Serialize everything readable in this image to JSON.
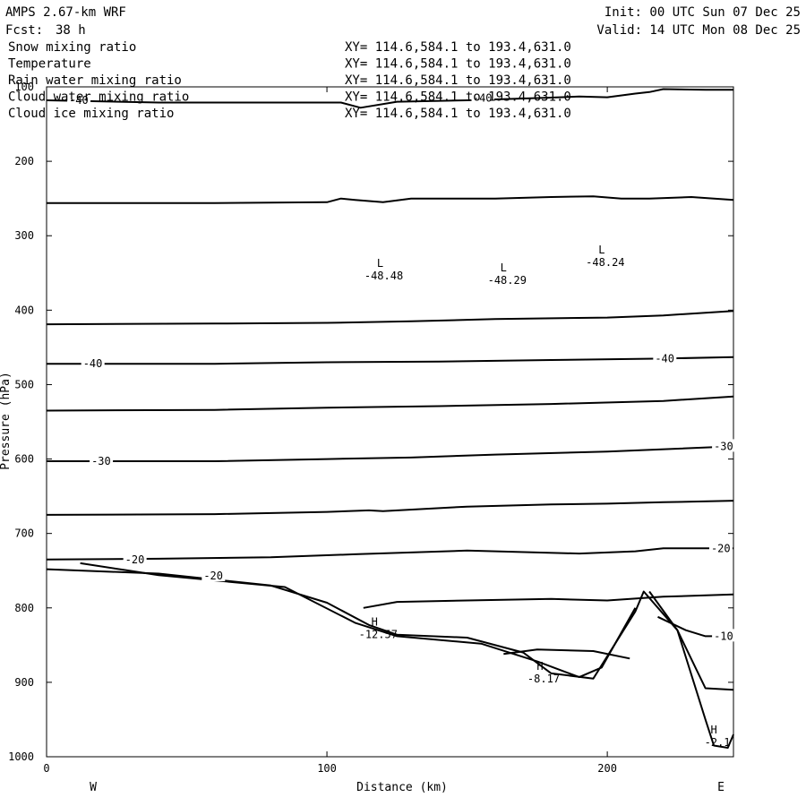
{
  "header": {
    "model": "AMPS 2.67-km WRF",
    "fcst_label": "Fcst:",
    "fcst_value": "38 h",
    "init": "Init: 00 UTC Sun 07 Dec 25",
    "valid": "Valid: 14 UTC Mon 08 Dec 25"
  },
  "fields": [
    {
      "name": "Snow mixing ratio",
      "xy": "XY= 114.6,584.1 to 193.4,631.0",
      "color": "#000000"
    },
    {
      "name": "Temperature",
      "xy": "XY= 114.6,584.1 to 193.4,631.0",
      "color": "#000000"
    },
    {
      "name": "Rain water mixing ratio",
      "xy": "XY= 114.6,584.1 to 193.4,631.0",
      "color": "#e00000"
    },
    {
      "name": "Cloud water mixing ratio",
      "xy": "XY= 114.6,584.1 to 193.4,631.0",
      "color": "#0000e0"
    },
    {
      "name": "Cloud ice mixing ratio",
      "xy": "XY= 114.6,584.1 to 193.4,631.0",
      "color": "#000000"
    }
  ],
  "chart_data": {
    "type": "line",
    "title": "",
    "xlabel": "Distance (km)",
    "ylabel": "Pressure (hPa)",
    "xlim": [
      0,
      245
    ],
    "ylim": [
      1000,
      100
    ],
    "x_ticks": [
      "0",
      "100",
      "200"
    ],
    "y_ticks": [
      "100",
      "200",
      "300",
      "400",
      "500",
      "600",
      "700",
      "800",
      "900",
      "1000"
    ],
    "x_tick_values": [
      0,
      100,
      200
    ],
    "y_tick_values": [
      100,
      200,
      300,
      400,
      500,
      600,
      700,
      800,
      900,
      1000
    ],
    "x_end_labels": {
      "left": "W",
      "right": "E"
    },
    "series": [
      {
        "level": -40,
        "points": [
          [
            0,
            118
          ],
          [
            40,
            121
          ],
          [
            80,
            121
          ],
          [
            105,
            121
          ],
          [
            112,
            128
          ],
          [
            125,
            120
          ],
          [
            150,
            118
          ],
          [
            175,
            115
          ],
          [
            190,
            113
          ],
          [
            200,
            114
          ],
          [
            210,
            109
          ],
          [
            215,
            107
          ],
          [
            220,
            103
          ],
          [
            235,
            104
          ],
          [
            245,
            104
          ]
        ]
      },
      {
        "points": [
          [
            0,
            256
          ],
          [
            60,
            256
          ],
          [
            100,
            255
          ],
          [
            105,
            250
          ],
          [
            110,
            252
          ],
          [
            120,
            255
          ],
          [
            130,
            250
          ],
          [
            160,
            250
          ],
          [
            180,
            248
          ],
          [
            195,
            247
          ],
          [
            205,
            250
          ],
          [
            215,
            250
          ],
          [
            230,
            248
          ],
          [
            245,
            252
          ]
        ]
      },
      {
        "points": [
          [
            0,
            419
          ],
          [
            60,
            418
          ],
          [
            100,
            417
          ],
          [
            130,
            415
          ],
          [
            160,
            412
          ],
          [
            200,
            410
          ],
          [
            220,
            407
          ],
          [
            245,
            401
          ]
        ]
      },
      {
        "level": -40,
        "points": [
          [
            0,
            472
          ],
          [
            60,
            472
          ],
          [
            100,
            470
          ],
          [
            140,
            469
          ],
          [
            180,
            467
          ],
          [
            220,
            465
          ],
          [
            245,
            463
          ]
        ]
      },
      {
        "points": [
          [
            0,
            535
          ],
          [
            60,
            534
          ],
          [
            100,
            531
          ],
          [
            140,
            529
          ],
          [
            180,
            526
          ],
          [
            220,
            522
          ],
          [
            245,
            516
          ]
        ]
      },
      {
        "level": -30,
        "points": [
          [
            0,
            603
          ],
          [
            60,
            603
          ],
          [
            100,
            600
          ],
          [
            130,
            598
          ],
          [
            160,
            594
          ],
          [
            200,
            590
          ],
          [
            245,
            583
          ]
        ]
      },
      {
        "points": [
          [
            0,
            675
          ],
          [
            60,
            674
          ],
          [
            100,
            671
          ],
          [
            115,
            669
          ],
          [
            120,
            670
          ],
          [
            150,
            664
          ],
          [
            180,
            661
          ],
          [
            200,
            660
          ],
          [
            220,
            658
          ],
          [
            245,
            656
          ]
        ]
      },
      {
        "level": -20,
        "points": [
          [
            0,
            735
          ],
          [
            40,
            734
          ],
          [
            80,
            732
          ],
          [
            110,
            728
          ],
          [
            150,
            723
          ],
          [
            190,
            727
          ],
          [
            210,
            724
          ],
          [
            220,
            720
          ],
          [
            245,
            720
          ]
        ]
      },
      {
        "level": -20,
        "points": [
          [
            0,
            748
          ],
          [
            40,
            754
          ],
          [
            80,
            770
          ],
          [
            100,
            793
          ],
          [
            115,
            823
          ],
          [
            125,
            836
          ],
          [
            150,
            840
          ],
          [
            170,
            860
          ],
          [
            180,
            888
          ],
          [
            195,
            895
          ],
          [
            210,
            805
          ],
          [
            213,
            778
          ],
          [
            225,
            830
          ],
          [
            235,
            908
          ],
          [
            245,
            910
          ]
        ]
      },
      {
        "points": [
          [
            12,
            740
          ],
          [
            40,
            756
          ],
          [
            85,
            772
          ],
          [
            110,
            820
          ],
          [
            125,
            838
          ],
          [
            155,
            848
          ],
          [
            175,
            872
          ],
          [
            190,
            893
          ],
          [
            198,
            880
          ],
          [
            210,
            800
          ]
        ]
      },
      {
        "points": [
          [
            113,
            800
          ],
          [
            125,
            792
          ],
          [
            150,
            790
          ],
          [
            180,
            788
          ],
          [
            200,
            790
          ],
          [
            220,
            785
          ],
          [
            245,
            782
          ]
        ]
      },
      {
        "level": -10,
        "points": [
          [
            218,
            812
          ],
          [
            228,
            830
          ],
          [
            235,
            838
          ],
          [
            245,
            838
          ]
        ]
      },
      {
        "points": [
          [
            163,
            862
          ],
          [
            175,
            856
          ],
          [
            195,
            858
          ],
          [
            208,
            868
          ]
        ]
      },
      {
        "points": [
          [
            215,
            778
          ],
          [
            225,
            830
          ],
          [
            235,
            950
          ],
          [
            238,
            985
          ],
          [
            243,
            988
          ],
          [
            245,
            970
          ]
        ]
      }
    ],
    "annotations": [
      {
        "text": "L",
        "value": "-48.48",
        "x": 119,
        "y": 342
      },
      {
        "text": "L",
        "value": "-48.29",
        "x": 163,
        "y": 348
      },
      {
        "text": "L",
        "value": "-48.24",
        "x": 198,
        "y": 324
      },
      {
        "text": "H",
        "value": "-12.57",
        "x": 117,
        "y": 824
      },
      {
        "text": "H",
        "value": "-8.17",
        "x": 176,
        "y": 883
      },
      {
        "text": "H",
        "value": "-2.1",
        "x": 238,
        "y": 969
      }
    ],
    "contour_labels": [
      {
        "text": "-40",
        "x": 8,
        "y": 118
      },
      {
        "text": "-40",
        "x": 152,
        "y": 115
      },
      {
        "text": "-40",
        "x": 13,
        "y": 472
      },
      {
        "text": "-40",
        "x": 217,
        "y": 465
      },
      {
        "text": "-30",
        "x": 16,
        "y": 603
      },
      {
        "text": "-30",
        "x": 238,
        "y": 583
      },
      {
        "text": "-20",
        "x": 28,
        "y": 735
      },
      {
        "text": "-20",
        "x": 56,
        "y": 757
      },
      {
        "text": "-20",
        "x": 237,
        "y": 720
      },
      {
        "text": "-10",
        "x": 238,
        "y": 838
      }
    ]
  }
}
